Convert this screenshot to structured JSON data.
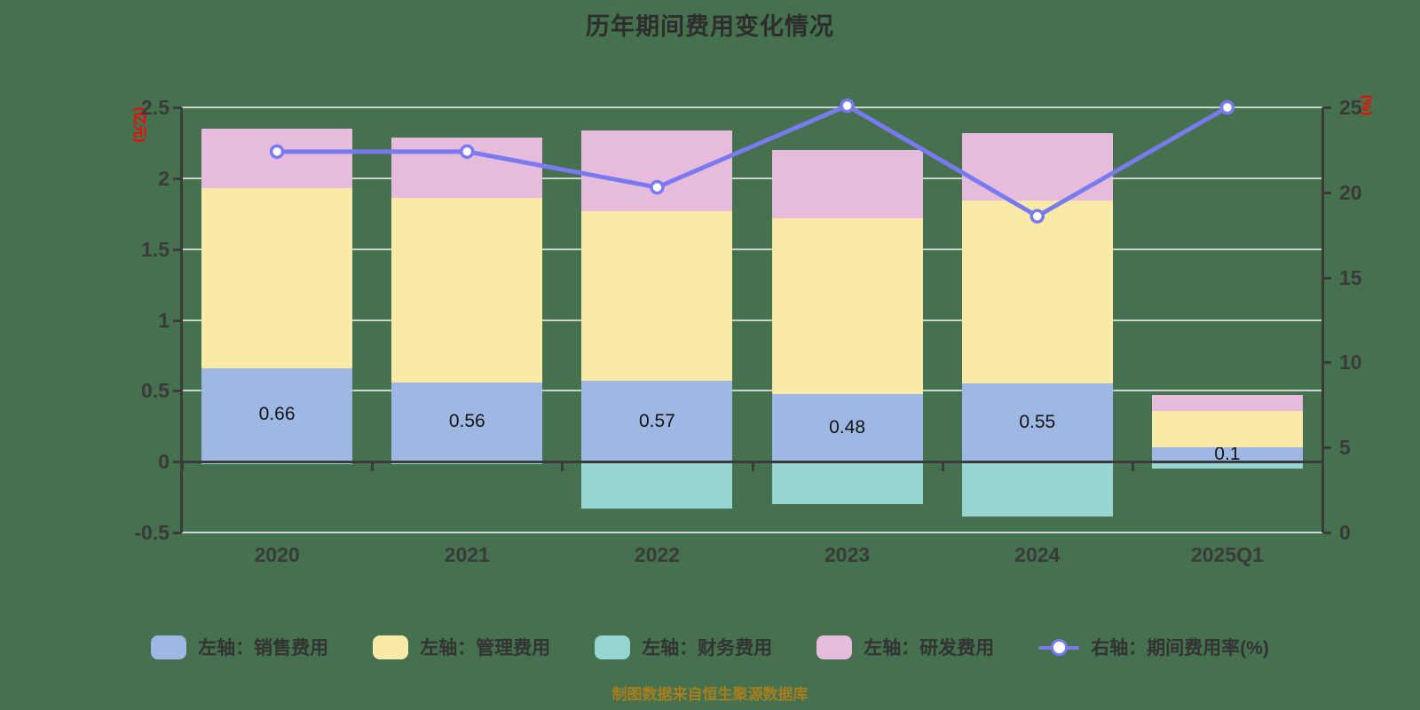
{
  "title": "历年期间费用变化情况",
  "footer": "制图数据来自恒生聚源数据库",
  "left_axis": {
    "name": "(亿元)",
    "tick_labels": [
      "2.5",
      "2",
      "1.5",
      "1",
      "0.5",
      "0",
      "-0.5"
    ],
    "tick_values": [
      2.5,
      2,
      1.5,
      1,
      0.5,
      0,
      -0.5
    ],
    "min": -0.5,
    "max": 2.5
  },
  "right_axis": {
    "name": "(%)",
    "tick_labels": [
      "25",
      "20",
      "15",
      "10",
      "5",
      "0"
    ],
    "tick_values": [
      25,
      20,
      15,
      10,
      5,
      0
    ],
    "min": 0,
    "max": 25
  },
  "colors": {
    "background": "#46714E",
    "axis": "#3B3B3B",
    "grid": "#CBD3CB",
    "title_text": "#2D2D2D",
    "tick_text": "#3A3A3A",
    "axis_name_text": "#FF0000",
    "value_label_text": "#141414",
    "footer_text": "#A67E1E",
    "sales": "#9EB8E3",
    "management": "#F9EAA8",
    "finance": "#96D5D0",
    "rnd": "#E6BBDB",
    "rate_line": "#7A7AF0",
    "marker_fill": "#FFFFFF"
  },
  "chart_data": {
    "type": "bar",
    "subtype": "stacked-bar-with-line",
    "title": "历年期间费用变化情况",
    "categories": [
      "2020",
      "2021",
      "2022",
      "2023",
      "2024",
      "2025Q1"
    ],
    "left_ylabel": "(亿元)",
    "right_ylabel": "(%)",
    "left_ylim": [
      -0.5,
      2.5
    ],
    "right_ylim": [
      0,
      25
    ],
    "grid": "horizontal",
    "legend_position": "bottom",
    "series": [
      {
        "name": "左轴：销售费用",
        "type": "bar",
        "axis": "left",
        "color": "#9EB8E3",
        "values": [
          0.66,
          0.56,
          0.57,
          0.48,
          0.55,
          0.1
        ],
        "labels": [
          "0.66",
          "0.56",
          "0.57",
          "0.48",
          "0.55",
          "0.1"
        ]
      },
      {
        "name": "左轴：管理费用",
        "type": "bar",
        "axis": "left",
        "color": "#F9EAA8",
        "values": [
          1.27,
          1.3,
          1.2,
          1.24,
          1.29,
          0.26
        ]
      },
      {
        "name": "左轴：财务费用",
        "type": "bar",
        "axis": "left",
        "color": "#96D5D0",
        "values": [
          -0.02,
          -0.02,
          -0.33,
          -0.3,
          -0.39,
          -0.05
        ]
      },
      {
        "name": "左轴：研发费用",
        "type": "bar",
        "axis": "left",
        "color": "#E6BBDB",
        "values": [
          0.42,
          0.43,
          0.57,
          0.48,
          0.48,
          0.11
        ]
      },
      {
        "name": "右轴：期间费用率(%)",
        "type": "line",
        "axis": "right",
        "color": "#7A7AF0",
        "values": [
          22.4,
          22.4,
          20.3,
          25.1,
          18.6,
          25.0
        ]
      }
    ]
  },
  "legend": {
    "items": [
      {
        "label": "左轴：销售费用",
        "symbol": "rect",
        "color": "#9EB8E3"
      },
      {
        "label": "左轴：管理费用",
        "symbol": "rect",
        "color": "#F9EAA8"
      },
      {
        "label": "左轴：财务费用",
        "symbol": "rect",
        "color": "#96D5D0"
      },
      {
        "label": "左轴：研发费用",
        "symbol": "rect",
        "color": "#E6BBDB"
      },
      {
        "label": "右轴：期间费用率(%)",
        "symbol": "line-marker",
        "color": "#7A7AF0"
      }
    ]
  }
}
